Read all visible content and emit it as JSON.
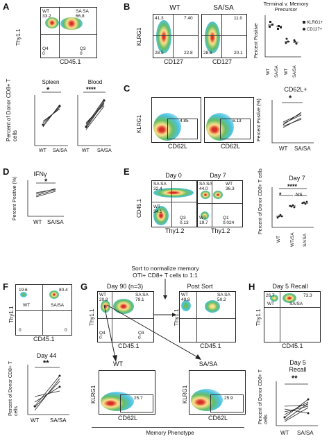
{
  "panels": {
    "A": {
      "letter": "A",
      "flow": {
        "ylabel": "Thy1.1",
        "xlabel": "CD45.1",
        "q_tl": "WT\n33.2",
        "q_tr": "SA SA\n66.8",
        "q_bl": "Q4\n0",
        "q_br": "Q3\n0"
      },
      "graph_ylabel": "Percent of Donor CD8+ T cells",
      "spleen_title": "Spleen",
      "blood_title": "Blood",
      "spleen_sig": "*",
      "blood_sig": "****",
      "cat_wt": "WT",
      "cat_sasa": "SA/SA"
    },
    "B": {
      "letter": "B",
      "wt_title": "WT",
      "sasa_title": "SA/SA",
      "ylabel": "KLRG1",
      "xlabel": "CD127",
      "wt_q": {
        "tl": "41.3",
        "tr": "7.40",
        "bl": "28.5",
        "br": "22.8"
      },
      "sasa_q": {
        "tl": "",
        "tr": "11.0",
        "bl": "28.6",
        "br": "20.1"
      },
      "graph_title": "Terminal v. Memory Precursor",
      "graph_ylabel": "Percent Positive",
      "legend": [
        "KLRG1+",
        "CD127+"
      ],
      "cats": [
        "WT",
        "SA/SA",
        "WT",
        "SA/SA"
      ]
    },
    "C": {
      "letter": "C",
      "ylabel": "KLRG1",
      "xlabel": "CD62L",
      "wt_val": "4.85",
      "sasa_val": "6.13",
      "graph_title": "CD62L+",
      "graph_ylabel": "Percent Postive (%)",
      "sig": "*",
      "cats": [
        "WT",
        "SA/SA"
      ]
    },
    "D": {
      "letter": "D",
      "graph_title": "IFNγ",
      "graph_ylabel": "Percent Positive (%)",
      "sig": "*",
      "cats": [
        "WT",
        "SA/SA"
      ]
    },
    "E": {
      "letter": "E",
      "day0_title": "Day 0",
      "day7_title": "Day 7",
      "ylabel": "CD45.1",
      "xlabel": "Thy1.2",
      "day0_q": {
        "tl": "SA SA\n32.4",
        "bl": "WT\n34.1",
        "br": "Q3\n0.13"
      },
      "day7_q": {
        "tl": "SA SA\n44.0",
        "tr": "WT\n36.3",
        "bl": "WT\n19.7",
        "br": "Q1\n0.024"
      },
      "graph_title": "Day 7",
      "graph_ylabel": "Percent of Donor CD8+ T cells",
      "sig_top": "****",
      "sig_a": "*",
      "sig_b": "NS",
      "cats": [
        "WT",
        "WT/SA",
        "SA/SA"
      ]
    },
    "F": {
      "letter": "F",
      "ylabel": "Thy1.1",
      "xlabel": "CD45.1",
      "q": {
        "tl": "19.6",
        "tr": "80.4",
        "bl": "0",
        "br": "0",
        "wt": "WT",
        "sasa": "SA/SA"
      },
      "graph_title": "Day 44",
      "graph_ylabel": "Percent of Donor CD8+ T cells",
      "sig": "**",
      "cats": [
        "WT",
        "SA/SA"
      ]
    },
    "G": {
      "letter": "G",
      "sort_text_1": "Sort to normalize memory",
      "sort_text_2": "OTI+ CD8+ T cells to 1:1",
      "day90_title": "Day 90 (n=3)",
      "postsort_title": "Post Sort",
      "ylabel": "Thy1.1",
      "xlabel": "CD45.1",
      "day90_q": {
        "tl": "WT\n20.9",
        "tr": "SA SA\n79.1",
        "bl": "Q4\n0",
        "br": "Q3\n0"
      },
      "post_q": {
        "tl": "WT\n49.8",
        "tr": "SA SA\n50.2",
        "bl": "",
        "br": ""
      },
      "wt_title": "WT",
      "sasa_title": "SA/SA",
      "klrg1": "KLRG1",
      "cd62l": "CD62L",
      "wt_val": "25.7",
      "sasa_val": "25.9",
      "footer": "Memory Phenotype"
    },
    "H": {
      "letter": "H",
      "flow_title": "Day 5 Recall",
      "ylabel": "Thy1.1",
      "xlabel": "CD45.1",
      "q": {
        "tl": "26.7",
        "tr": "73.3",
        "wt": "WT",
        "sasa": "SA/SA"
      },
      "graph_title_1": "Day 5",
      "graph_title_2": "Recall",
      "graph_ylabel": "Percent of Donor CD8+ T cells",
      "sig": "**",
      "cats": [
        "WT",
        "SA/SA"
      ]
    }
  },
  "colors": {
    "line": "#222222",
    "blob_red": "#d73027",
    "blob_yellow": "#fee08b",
    "blob_green": "#66bd63",
    "blob_cyan": "#4dc3e0",
    "blob_blue": "#3b4cc0"
  }
}
